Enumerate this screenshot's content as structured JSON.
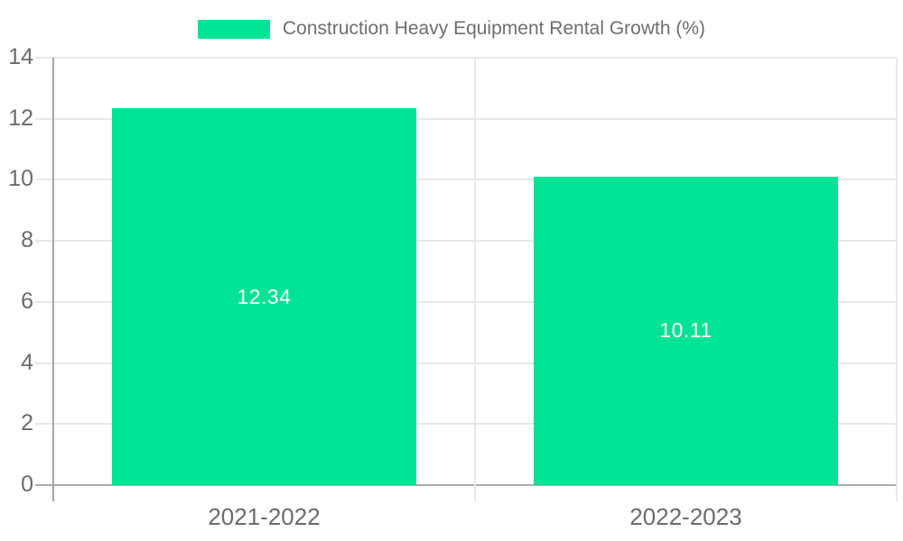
{
  "chart_data": {
    "type": "bar",
    "categories": [
      "2021-2022",
      "2022-2023"
    ],
    "series": [
      {
        "name": "Construction Heavy Equipment Rental Growth (%)",
        "values": [
          12.34,
          10.11
        ]
      }
    ],
    "data_labels": [
      "12.34",
      "10.11"
    ],
    "yticks": [
      "0",
      "2",
      "4",
      "6",
      "8",
      "10",
      "12",
      "14"
    ],
    "ylim": [
      0,
      14
    ],
    "grid": true,
    "legend_position": "top",
    "colors": {
      "series": "#00E396",
      "bar_label_text": "#ffffff",
      "axis_text": "#6b6b6b",
      "gridline": "#e8e8e8",
      "axis_line": "#a5a5a5",
      "baseline": "#ababab",
      "background": "#ffffff"
    }
  }
}
